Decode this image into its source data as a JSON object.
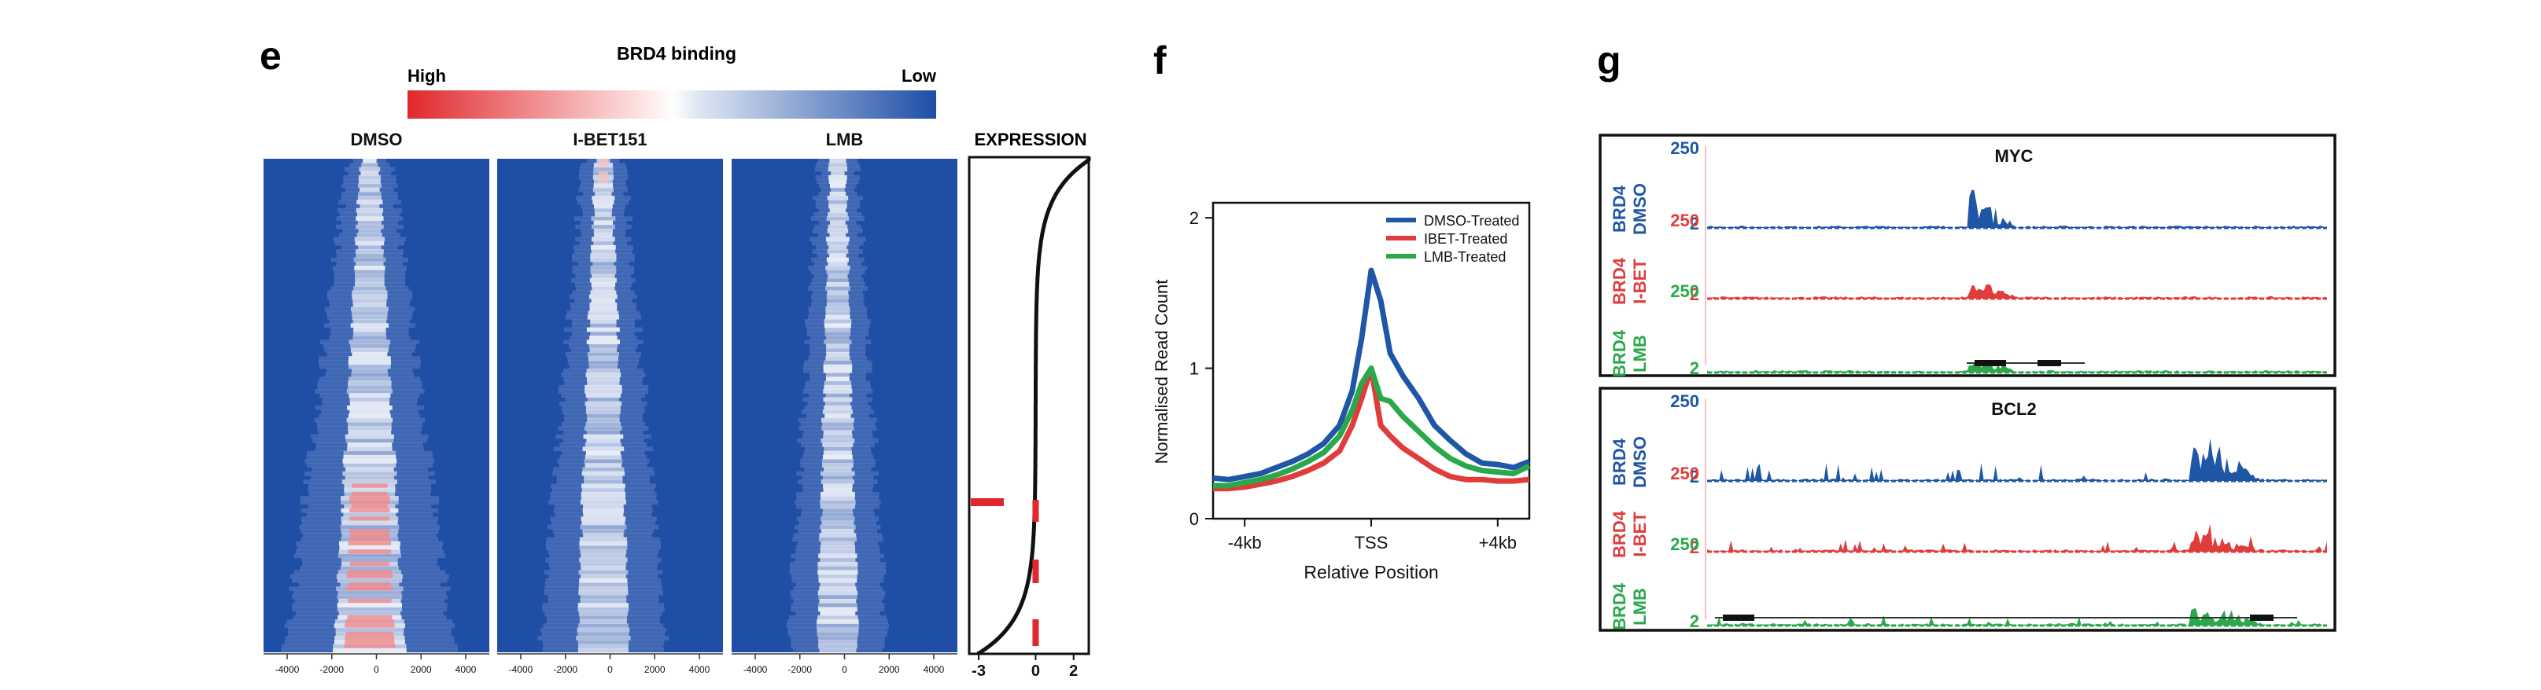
{
  "panels": {
    "e": {
      "letter": "e",
      "scale_title": "BRD4 binding",
      "scale_high": "High",
      "scale_low": "Low",
      "heatmaps": [
        {
          "label": "DMSO",
          "spread": 1.0
        },
        {
          "label": "I-BET151",
          "spread": 0.75
        },
        {
          "label": "LMB",
          "spread": 0.55
        }
      ],
      "x_ticks": [
        "-4000",
        "-2000",
        "0",
        "2000",
        "4000"
      ],
      "expression": {
        "label": "EXPRESSION",
        "x_ticks": [
          "-3",
          "0",
          "2"
        ]
      }
    },
    "f": {
      "letter": "f",
      "chart_data": {
        "type": "line",
        "title": "",
        "xlabel": "Relative Position",
        "ylabel": "Normalised Read Count",
        "x_ticks": [
          "-4kb",
          "TSS",
          "+4kb"
        ],
        "y_ticks": [
          "0",
          "1",
          "2"
        ],
        "xlim": [
          -5000,
          5000
        ],
        "ylim": [
          0,
          2.1
        ],
        "x": [
          -5000,
          -4500,
          -4000,
          -3500,
          -3000,
          -2500,
          -2000,
          -1500,
          -1000,
          -600,
          -300,
          0,
          300,
          600,
          1000,
          1500,
          2000,
          2500,
          3000,
          3500,
          4000,
          4500,
          5000
        ],
        "series": [
          {
            "name": "DMSO-Treated",
            "color": "#1f56a6",
            "values": [
              0.27,
              0.26,
              0.28,
              0.3,
              0.34,
              0.38,
              0.43,
              0.5,
              0.62,
              0.85,
              1.2,
              1.65,
              1.45,
              1.1,
              0.95,
              0.8,
              0.62,
              0.52,
              0.43,
              0.37,
              0.36,
              0.34,
              0.38
            ]
          },
          {
            "name": "IBET-Treated",
            "color": "#e03c3c",
            "values": [
              0.2,
              0.2,
              0.21,
              0.23,
              0.25,
              0.28,
              0.32,
              0.37,
              0.45,
              0.62,
              0.8,
              1.0,
              0.62,
              0.55,
              0.47,
              0.4,
              0.33,
              0.28,
              0.26,
              0.26,
              0.25,
              0.25,
              0.26
            ]
          },
          {
            "name": "LMB-Treated",
            "color": "#2aa84a",
            "values": [
              0.22,
              0.22,
              0.24,
              0.26,
              0.29,
              0.33,
              0.38,
              0.44,
              0.55,
              0.72,
              0.9,
              1.0,
              0.8,
              0.78,
              0.68,
              0.58,
              0.48,
              0.4,
              0.35,
              0.32,
              0.31,
              0.3,
              0.35
            ]
          }
        ],
        "legend": "top-right"
      }
    },
    "g": {
      "letter": "g",
      "boxes": [
        {
          "gene": "MYC",
          "tracks": [
            {
              "label1": "BRD4",
              "label2": "DMSO",
              "max": "250",
              "min": "2",
              "color": "#1f56a6"
            },
            {
              "label1": "BRD4",
              "label2": "I-BET",
              "max": "250",
              "min": "2",
              "color": "#e03c3c"
            },
            {
              "label1": "BRD4",
              "label2": "LMB",
              "max": "250",
              "min": "2",
              "color": "#2aa84a"
            }
          ]
        },
        {
          "gene": "BCL2",
          "tracks": [
            {
              "label1": "BRD4",
              "label2": "DMSO",
              "max": "250",
              "min": "2",
              "color": "#1f56a6"
            },
            {
              "label1": "BRD4",
              "label2": "I-BET",
              "max": "250",
              "min": "2",
              "color": "#e03c3c"
            },
            {
              "label1": "BRD4",
              "label2": "LMB",
              "max": "250",
              "min": "2",
              "color": "#2aa84a"
            }
          ]
        }
      ]
    }
  }
}
